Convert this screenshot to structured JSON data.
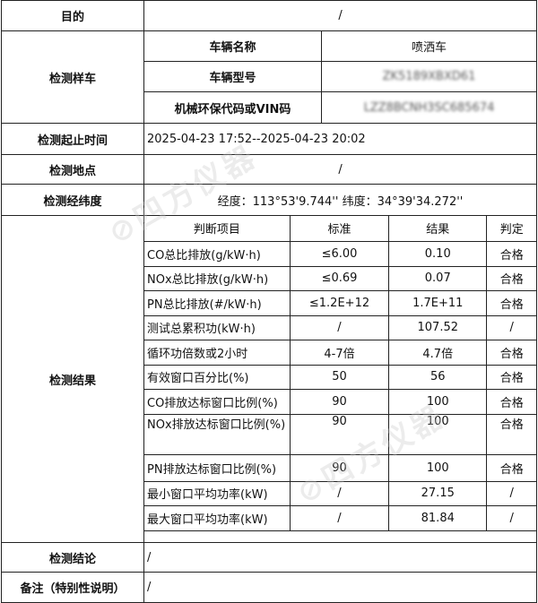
{
  "purpose": {
    "label": "目的",
    "value": "/"
  },
  "sample": {
    "label": "检测样车",
    "rows": [
      {
        "label": "车辆名称",
        "value": "喷洒车"
      },
      {
        "label": "车辆型号",
        "value": "ZK5189XBXD61"
      },
      {
        "label": "机械环保代码或VIN码",
        "value": "LZZ8BCNH3SC685674"
      }
    ]
  },
  "time": {
    "label": "检测起止时间",
    "value": "2025-04-23 17:52--2025-04-23 20:02"
  },
  "location": {
    "label": "检测地点",
    "value": "/"
  },
  "coords": {
    "label": "检测经纬度",
    "value": "经度：113°53'9.744'' 纬度：34°39'34.272''"
  },
  "results": {
    "label": "检测结果",
    "headers": [
      "判断项目",
      "标准",
      "结果",
      "判定"
    ],
    "rows": [
      [
        "CO总比排放(g/kW·h)",
        "≤6.00",
        "0.10",
        "合格"
      ],
      [
        "NOx总比排放(g/kW·h)",
        "≤0.69",
        "0.07",
        "合格"
      ],
      [
        "PN总比排放(#/kW·h)",
        "≤1.2E+12",
        "1.7E+11",
        "合格"
      ],
      [
        "测试总累积功(kW·h)",
        "/",
        "107.52",
        "/"
      ],
      [
        "循环功倍数或2小时",
        "4-7倍",
        "4.7倍",
        "合格"
      ],
      [
        "有效窗口百分比(%)",
        "50",
        "56",
        "合格"
      ],
      [
        "CO排放达标窗口比例(%)",
        "90",
        "100",
        "合格"
      ],
      [
        "NOx排放达标窗口比例(%)",
        "90",
        "100",
        "合格"
      ],
      [
        "PN排放达标窗口比例(%)",
        "90",
        "100",
        "合格"
      ],
      [
        "最小窗口平均功率(kW)",
        "/",
        "27.15",
        "/"
      ],
      [
        "最大窗口平均功率(kW)",
        "/",
        "81.84",
        "/"
      ]
    ]
  },
  "conclusion": {
    "label": "检测结论",
    "value": "/"
  },
  "remarks": {
    "label": "备注（特别性说明）",
    "value": "/"
  },
  "watermark": "四方仪器"
}
